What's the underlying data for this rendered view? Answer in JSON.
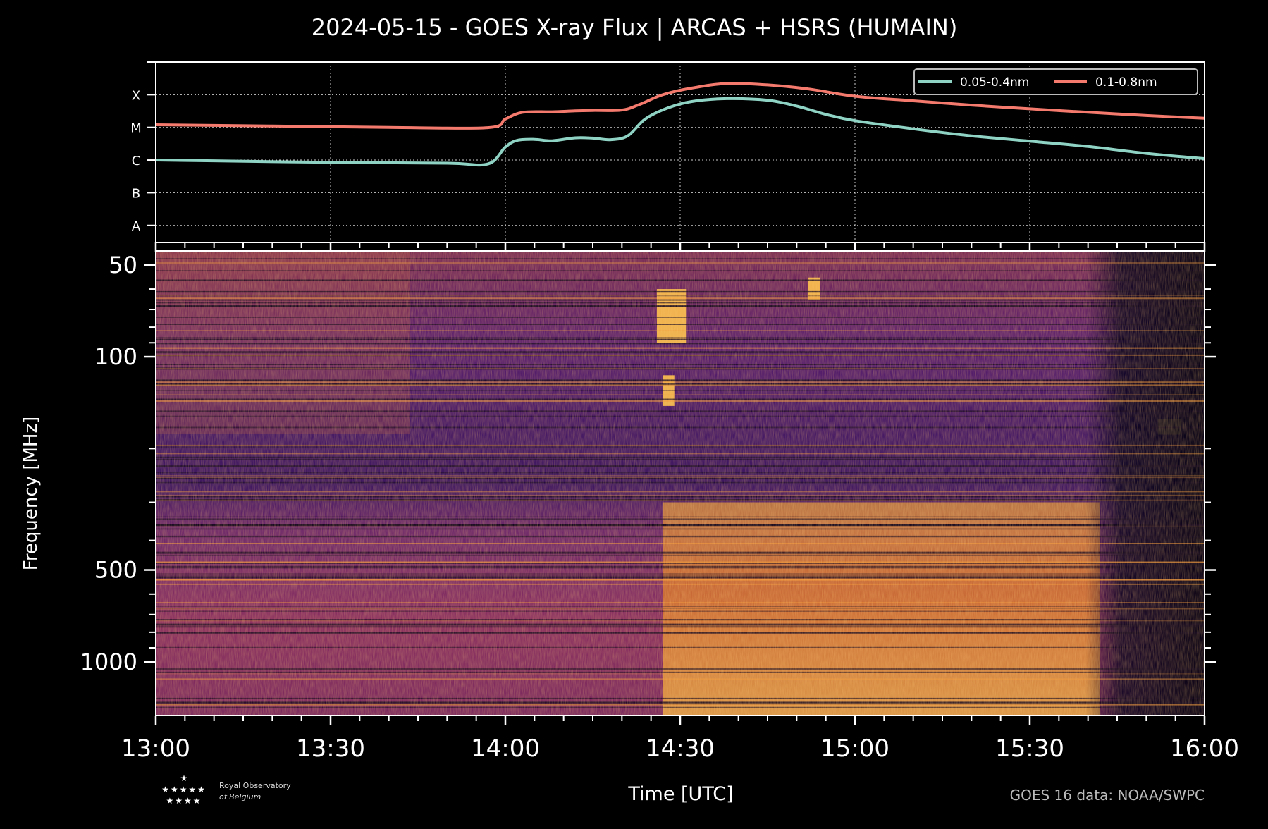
{
  "title": "2024-05-15 - GOES X-ray Flux | ARCAS + HSRS (HUMAIN)",
  "credits": {
    "goes": "GOES 16 data: NOAA/SWPC",
    "logo_line1": "Royal Observatory",
    "logo_line2": "of Belgium"
  },
  "colors": {
    "background": "#000000",
    "axis": "#ffffff",
    "series_short": "#8fd3c4",
    "series_long": "#f47a6e",
    "spectrogram_low": "#2a0f4d",
    "spectrogram_mid": "#8a2a6a",
    "spectrogram_high": "#f08a1c",
    "spectrogram_peak": "#ffd24a"
  },
  "chart_data": [
    {
      "type": "line",
      "panel": "xray-flux",
      "title": "2024-05-15 - GOES X-ray Flux | ARCAS + HSRS (HUMAIN)",
      "xlabel": "",
      "ylabel": "",
      "xlim": [
        "13:00",
        "16:00"
      ],
      "x_ticks": [
        "13:00",
        "13:30",
        "14:00",
        "14:30",
        "15:00",
        "15:30",
        "16:00"
      ],
      "y_scale": "log",
      "y_tick_labels": [
        "A",
        "B",
        "C",
        "M",
        "X"
      ],
      "y_class_levels": {
        "A": 1e-08,
        "B": 1e-07,
        "C": 1e-06,
        "M": 1e-05,
        "X": 0.0001
      },
      "ylim": [
        3e-09,
        0.001
      ],
      "grid": true,
      "legend_position": "top-right",
      "series": [
        {
          "name": "0.05-0.4nm",
          "color": "#8fd3c4",
          "points": [
            [
              "13:00",
              1e-06
            ],
            [
              "13:10",
              9.5e-07
            ],
            [
              "13:30",
              8.5e-07
            ],
            [
              "13:50",
              8e-07
            ],
            [
              "13:57",
              7.6e-07
            ],
            [
              "14:00",
              2.5e-06
            ],
            [
              "14:02",
              4e-06
            ],
            [
              "14:05",
              4.3e-06
            ],
            [
              "14:08",
              3.9e-06
            ],
            [
              "14:12",
              4.8e-06
            ],
            [
              "14:15",
              4.7e-06
            ],
            [
              "14:18",
              4.2e-06
            ],
            [
              "14:21",
              5.5e-06
            ],
            [
              "14:24",
              1.8e-05
            ],
            [
              "14:28",
              4e-05
            ],
            [
              "14:32",
              6.2e-05
            ],
            [
              "14:38",
              7.6e-05
            ],
            [
              "14:45",
              6.8e-05
            ],
            [
              "14:50",
              4.5e-05
            ],
            [
              "14:55",
              2.5e-05
            ],
            [
              "15:00",
              1.6e-05
            ],
            [
              "15:10",
              9e-06
            ],
            [
              "15:20",
              5.5e-06
            ],
            [
              "15:30",
              3.8e-06
            ],
            [
              "15:40",
              2.6e-06
            ],
            [
              "15:50",
              1.6e-06
            ],
            [
              "16:00",
              1.1e-06
            ]
          ]
        },
        {
          "name": "0.1-0.8nm",
          "color": "#f47a6e",
          "points": [
            [
              "13:00",
              1.2e-05
            ],
            [
              "13:20",
              1.1e-05
            ],
            [
              "13:40",
              1e-05
            ],
            [
              "13:57",
              9.8e-06
            ],
            [
              "14:00",
              1.8e-05
            ],
            [
              "14:03",
              2.9e-05
            ],
            [
              "14:08",
              3e-05
            ],
            [
              "14:12",
              3.2e-05
            ],
            [
              "14:15",
              3.3e-05
            ],
            [
              "14:20",
              3.4e-05
            ],
            [
              "14:23",
              5e-05
            ],
            [
              "14:27",
              0.0001
            ],
            [
              "14:32",
              0.00016
            ],
            [
              "14:38",
              0.00022
            ],
            [
              "14:45",
              0.0002
            ],
            [
              "14:52",
              0.00015
            ],
            [
              "15:00",
              9e-05
            ],
            [
              "15:10",
              6.5e-05
            ],
            [
              "15:20",
              4.8e-05
            ],
            [
              "15:30",
              3.7e-05
            ],
            [
              "15:40",
              2.9e-05
            ],
            [
              "15:50",
              2.3e-05
            ],
            [
              "16:00",
              1.9e-05
            ]
          ]
        }
      ]
    },
    {
      "type": "heatmap",
      "panel": "radio-spectrogram",
      "xlabel": "Time [UTC]",
      "ylabel": "Frequency [MHz]",
      "xlim": [
        "13:00",
        "16:00"
      ],
      "x_ticks": [
        "13:00",
        "13:30",
        "14:00",
        "14:30",
        "15:00",
        "15:30",
        "16:00"
      ],
      "y_scale": "log",
      "ylim": [
        1500,
        45
      ],
      "y_ticks": [
        50,
        100,
        500,
        1000
      ],
      "y_tick_labels": [
        "50",
        "100",
        "500",
        "1000"
      ],
      "colormap": "inferno",
      "features": [
        {
          "kind": "burst",
          "time_start": "14:26",
          "time_end": "14:31",
          "freq_low": 60,
          "freq_high": 90
        },
        {
          "kind": "burst",
          "time_start": "14:27",
          "time_end": "14:29",
          "freq_low": 115,
          "freq_high": 145
        },
        {
          "kind": "burst",
          "time_start": "14:52",
          "time_end": "14:54",
          "freq_low": 55,
          "freq_high": 65
        },
        {
          "kind": "continuum",
          "time_start": "14:27",
          "time_end": "15:42",
          "freq_low": 300,
          "freq_high": 1500
        },
        {
          "kind": "interference",
          "time_start": "15:52",
          "time_end": "15:56",
          "freq_low": 160,
          "freq_high": 180
        }
      ]
    }
  ]
}
